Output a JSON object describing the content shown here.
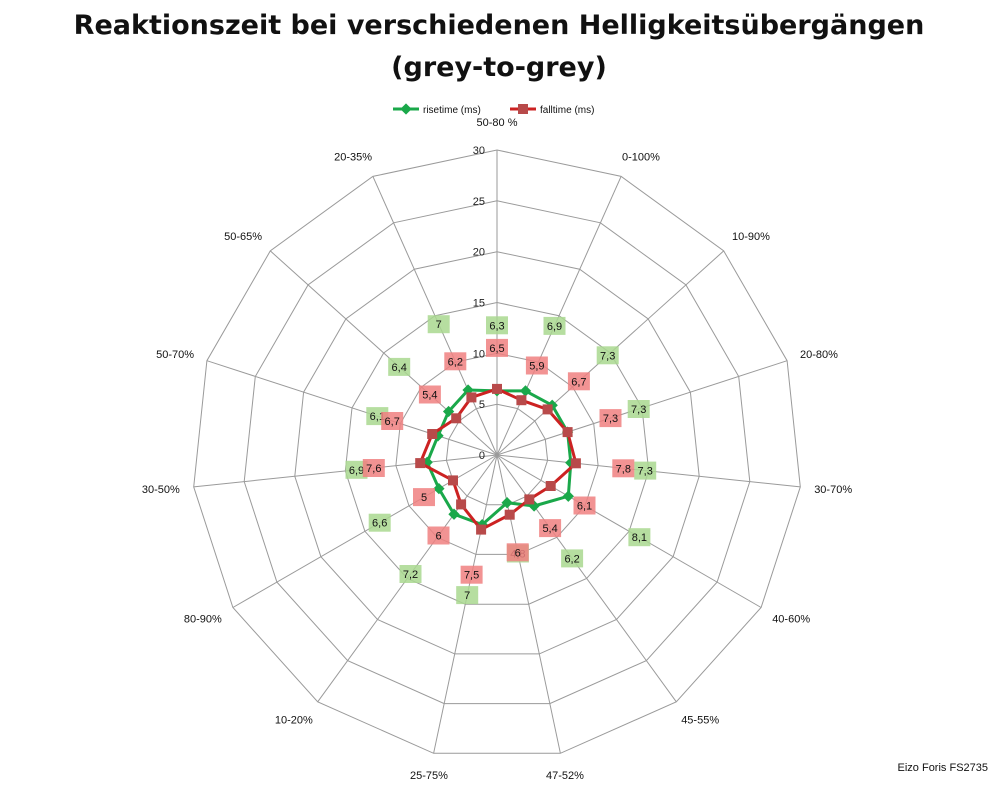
{
  "chart_data": {
    "type": "radar",
    "title": "Reaktionszeit bei verschiedenen Helligkeitsübergängen",
    "subtitle": "(grey-to-grey)",
    "categories": [
      "50-80 %",
      "0-100%",
      "10-90%",
      "20-80%",
      "30-70%",
      "40-60%",
      "45-55%",
      "47-52%",
      "25-75%",
      "10-20%",
      "80-90%",
      "30-50%",
      "50-70%",
      "50-65%",
      "20-35%"
    ],
    "rlim": [
      0,
      30
    ],
    "ticks": [
      0,
      5,
      10,
      15,
      20,
      25,
      30
    ],
    "series": [
      {
        "name": "risetime (ms)",
        "color": "#1aa84a",
        "label_bg": "#a9d88f",
        "values": [
          6.3,
          6.9,
          7.3,
          7.3,
          7.3,
          8.1,
          6.2,
          4.8,
          7,
          7.2,
          6.6,
          6.9,
          6.1,
          6.4,
          7
        ],
        "labels": [
          "6,3",
          "6,9",
          "7,3",
          "7,3",
          "7,3",
          "8,1",
          "6,2",
          "4,8",
          "7",
          "7,2",
          "6,6",
          "6,9",
          "6,1",
          "6,4",
          "7"
        ]
      },
      {
        "name": "falltime (ms)",
        "color": "#cc2222",
        "label_bg": "#f08080",
        "values": [
          6.5,
          5.9,
          6.7,
          7.3,
          7.8,
          6.1,
          5.4,
          6,
          7.5,
          6,
          5,
          7.6,
          6.7,
          5.4,
          6.2
        ],
        "labels": [
          "6,5",
          "5,9",
          "6,7",
          "7,3",
          "7,8",
          "6,1",
          "5,4",
          "6",
          "7,5",
          "6",
          "5",
          "7,6",
          "6,7",
          "5,4",
          "6,2"
        ]
      }
    ],
    "legend_position": "top",
    "grid": true
  },
  "caption": "Eizo Foris FS2735"
}
